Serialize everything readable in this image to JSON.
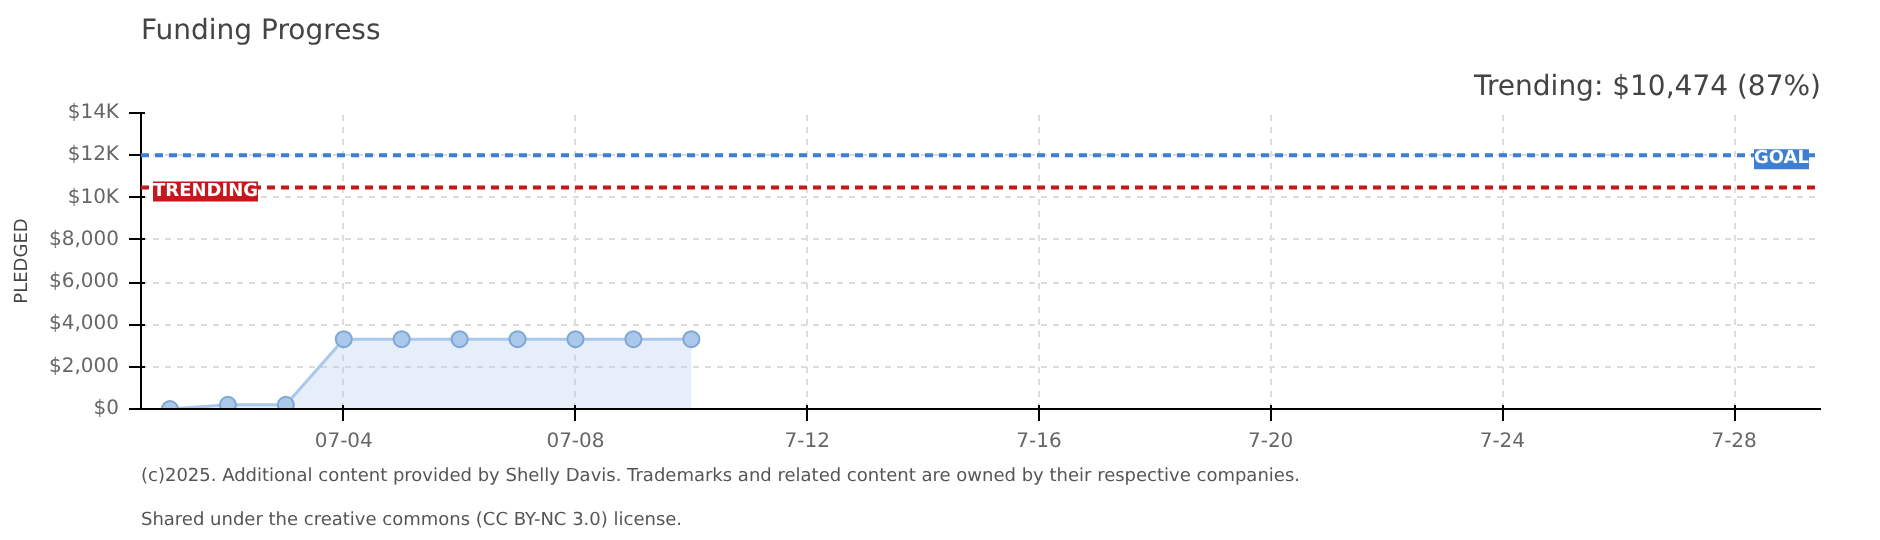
{
  "chart_data": {
    "type": "area",
    "title": "Funding Progress",
    "subtitle": "Trending: $10,474 (87%)",
    "ylabel": "PLEDGED",
    "x": [
      "2025-07-01",
      "2025-07-02",
      "2025-07-03",
      "2025-07-04",
      "2025-07-05",
      "2025-07-06",
      "2025-07-07",
      "2025-07-08",
      "2025-07-09",
      "2025-07-10"
    ],
    "series": [
      {
        "color": "#a9c8ea",
        "values": [
          0,
          200,
          200,
          3300,
          3300,
          3300,
          3300,
          3300,
          3300,
          3300
        ]
      }
    ],
    "marker": "circle",
    "grid": true,
    "xlim": [
      "2025-06-30T12:00",
      "2025-07-29T12:00"
    ],
    "xticks": [
      {
        "value": "2025-07-04",
        "label": "07-04"
      },
      {
        "value": "2025-07-08",
        "label": "07-08"
      },
      {
        "value": "2025-07-12",
        "label": "7-12"
      },
      {
        "value": "2025-07-16",
        "label": "7-16"
      },
      {
        "value": "2025-07-20",
        "label": "7-20"
      },
      {
        "value": "2025-07-24",
        "label": "7-24"
      },
      {
        "value": "2025-07-28",
        "label": "7-28"
      }
    ],
    "ylim": [
      0,
      14000
    ],
    "yticks": [
      {
        "value": 0,
        "label": "$0"
      },
      {
        "value": 2000,
        "label": "$2,000"
      },
      {
        "value": 4000,
        "label": "$4,000"
      },
      {
        "value": 6000,
        "label": "$6,000"
      },
      {
        "value": 8000,
        "label": "$8,000"
      },
      {
        "value": 10000,
        "label": "$10K"
      },
      {
        "value": 12000,
        "label": "$12K"
      },
      {
        "value": 14000,
        "label": "$14K"
      }
    ],
    "ref_lines": [
      {
        "axis": "y",
        "value": 12000,
        "label": "GOAL",
        "color": "#3d7fd1",
        "line_style": "dashed"
      },
      {
        "axis": "y",
        "value": 10474,
        "label": "TRENDING",
        "color": "#c4181c",
        "line_style": "dashed"
      }
    ],
    "annotations": [
      "(c)2025. Additional content provided by Shelly Davis. Trademarks and related content are owned by their respective companies.",
      "Shared under the creative commons (CC BY-NC 3.0) license."
    ]
  }
}
